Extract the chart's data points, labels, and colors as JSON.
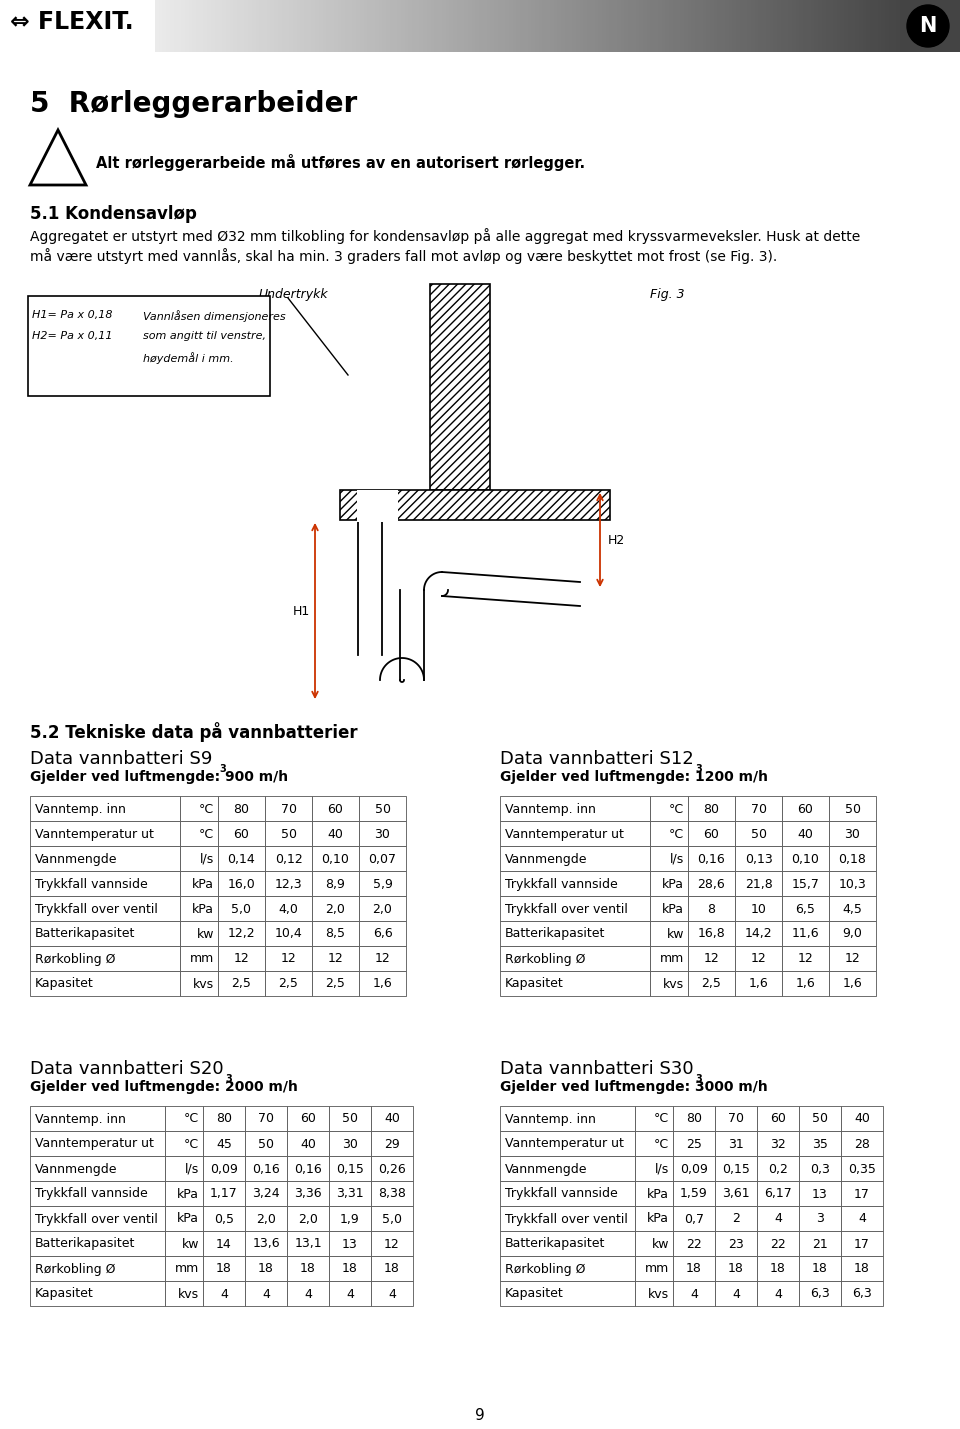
{
  "page_title": "5  Rørleggerarbeider",
  "warning_text": "Alt rørleggerarbeide må utføres av en autorisert rørlegger.",
  "section_51_title": "5.1 Kondensavløp",
  "section_51_text": "Aggregatet er utstyrt med Ø32 mm tilkobling for kondensavløp på alle aggregat med kryssvarmeveksler. Husk at dette må være utstyrt med vannlås, skal ha min. 3 graders fall mot avløp og være beskyttet mot frost (se Fig. 3).",
  "fig3_label": "Fig. 3",
  "undertrykk_label": "Undertrykk",
  "box_line1a": "H1= Pa x 0,18",
  "box_line1b": "Vannlåsen dimensjoneres",
  "box_line2a": "H2= Pa x 0,11",
  "box_line2b": "som angitt til venstre,",
  "box_line3": "høydemål i mm.",
  "H1_label": "H1",
  "H2_label": "H2",
  "section_52_title": "5.2 Tekniske data på vannbatterier",
  "table_S9_title": "Data vannbatteri S9",
  "table_S9_subtitle": "Gjelder ved luftmengde: 900 m/h",
  "table_S12_title": "Data vannbatteri S12",
  "table_S12_subtitle": "Gjelder ved luftmengde: 1200 m/h",
  "table_S20_title": "Data vannbatteri S20",
  "table_S20_subtitle": "Gjelder ved luftmengde: 2000 m/h",
  "table_S30_title": "Data vannbatteri S30",
  "table_S30_subtitle": "Gjelder ved luftmengde: 3000 m/h",
  "table_S9_rows": [
    [
      "Vanntemp. inn",
      "°C",
      "80",
      "70",
      "60",
      "50"
    ],
    [
      "Vanntemperatur ut",
      "°C",
      "60",
      "50",
      "40",
      "30"
    ],
    [
      "Vannmengde",
      "l/s",
      "0,14",
      "0,12",
      "0,10",
      "0,07"
    ],
    [
      "Trykkfall vannside",
      "kPa",
      "16,0",
      "12,3",
      "8,9",
      "5,9"
    ],
    [
      "Trykkfall over ventil",
      "kPa",
      "5,0",
      "4,0",
      "2,0",
      "2,0"
    ],
    [
      "Batterikapasitet",
      "kw",
      "12,2",
      "10,4",
      "8,5",
      "6,6"
    ],
    [
      "Rørkobling Ø",
      "mm",
      "12",
      "12",
      "12",
      "12"
    ],
    [
      "Kapasitet",
      "kvs",
      "2,5",
      "2,5",
      "2,5",
      "1,6"
    ]
  ],
  "table_S12_rows": [
    [
      "Vanntemp. inn",
      "°C",
      "80",
      "70",
      "60",
      "50"
    ],
    [
      "Vanntemperatur ut",
      "°C",
      "60",
      "50",
      "40",
      "30"
    ],
    [
      "Vannmengde",
      "l/s",
      "0,16",
      "0,13",
      "0,10",
      "0,18"
    ],
    [
      "Trykkfall vannside",
      "kPa",
      "28,6",
      "21,8",
      "15,7",
      "10,3"
    ],
    [
      "Trykkfall over ventil",
      "kPa",
      "8",
      "10",
      "6,5",
      "4,5"
    ],
    [
      "Batterikapasitet",
      "kw",
      "16,8",
      "14,2",
      "11,6",
      "9,0"
    ],
    [
      "Rørkobling Ø",
      "mm",
      "12",
      "12",
      "12",
      "12"
    ],
    [
      "Kapasitet",
      "kvs",
      "2,5",
      "1,6",
      "1,6",
      "1,6"
    ]
  ],
  "table_S20_rows": [
    [
      "Vanntemp. inn",
      "°C",
      "80",
      "70",
      "60",
      "50",
      "40"
    ],
    [
      "Vanntemperatur ut",
      "°C",
      "45",
      "50",
      "40",
      "30",
      "29"
    ],
    [
      "Vannmengde",
      "l/s",
      "0,09",
      "0,16",
      "0,16",
      "0,15",
      "0,26"
    ],
    [
      "Trykkfall vannside",
      "kPa",
      "1,17",
      "3,24",
      "3,36",
      "3,31",
      "8,38"
    ],
    [
      "Trykkfall over ventil",
      "kPa",
      "0,5",
      "2,0",
      "2,0",
      "1,9",
      "5,0"
    ],
    [
      "Batterikapasitet",
      "kw",
      "14",
      "13,6",
      "13,1",
      "13",
      "12"
    ],
    [
      "Rørkobling Ø",
      "mm",
      "18",
      "18",
      "18",
      "18",
      "18"
    ],
    [
      "Kapasitet",
      "kvs",
      "4",
      "4",
      "4",
      "4",
      "4"
    ]
  ],
  "table_S30_rows": [
    [
      "Vanntemp. inn",
      "°C",
      "80",
      "70",
      "60",
      "50",
      "40"
    ],
    [
      "Vanntemperatur ut",
      "°C",
      "25",
      "31",
      "32",
      "35",
      "28"
    ],
    [
      "Vannmengde",
      "l/s",
      "0,09",
      "0,15",
      "0,2",
      "0,3",
      "0,35"
    ],
    [
      "Trykkfall vannside",
      "kPa",
      "1,59",
      "3,61",
      "6,17",
      "13",
      "17"
    ],
    [
      "Trykkfall over ventil",
      "kPa",
      "0,7",
      "2",
      "4",
      "3",
      "4"
    ],
    [
      "Batterikapasitet",
      "kw",
      "22",
      "23",
      "22",
      "21",
      "17"
    ],
    [
      "Rørkobling Ø",
      "mm",
      "18",
      "18",
      "18",
      "18",
      "18"
    ],
    [
      "Kapasitet",
      "kvs",
      "4",
      "4",
      "4",
      "6,3",
      "6,3"
    ]
  ],
  "page_number": "9",
  "bg_color": "#ffffff"
}
